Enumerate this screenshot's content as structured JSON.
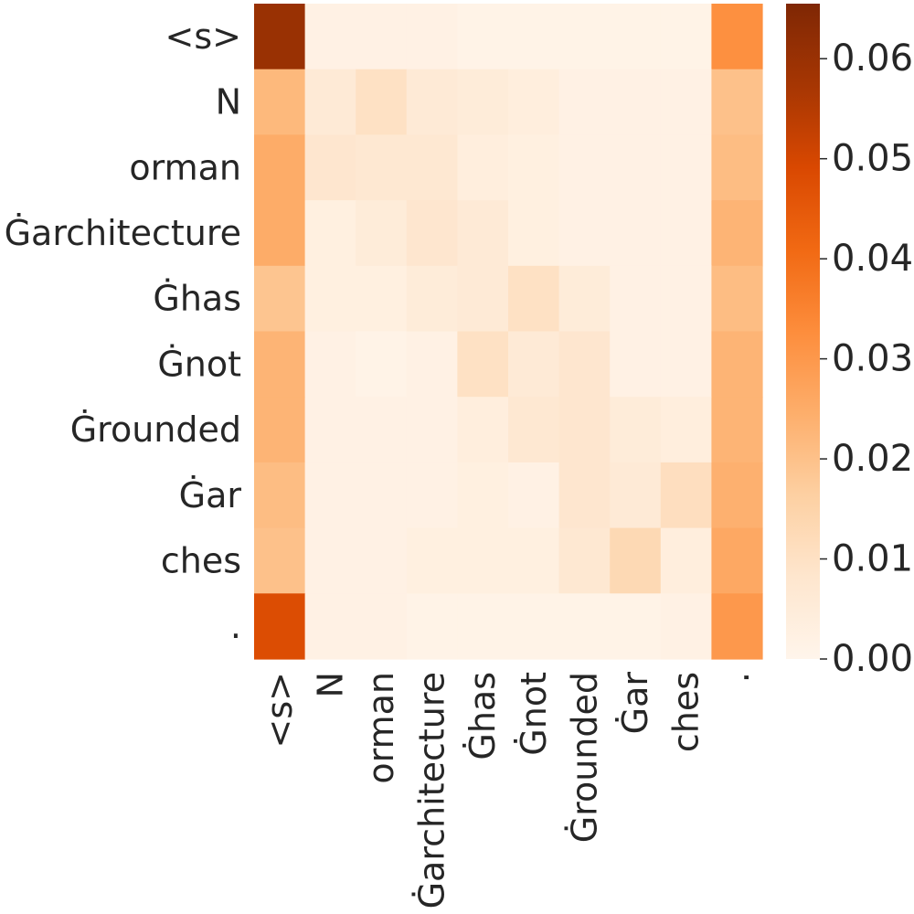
{
  "chart_data": {
    "type": "heatmap",
    "title": "",
    "xlabel": "",
    "ylabel": "",
    "x_labels": [
      "<s>",
      "N",
      "orman",
      "Ġarchitecture",
      "Ġhas",
      "Ġnot",
      "Ġrounded",
      "Ġar",
      "ches",
      "."
    ],
    "y_labels": [
      "<s>",
      "N",
      "orman",
      "Ġarchitecture",
      "Ġhas",
      "Ġnot",
      "Ġrounded",
      "Ġar",
      "ches",
      "."
    ],
    "values": [
      [
        0.06,
        0.002,
        0.002,
        0.002,
        0.001,
        0.001,
        0.001,
        0.001,
        0.001,
        0.032
      ],
      [
        0.022,
        0.006,
        0.01,
        0.006,
        0.005,
        0.004,
        0.002,
        0.002,
        0.002,
        0.02
      ],
      [
        0.025,
        0.008,
        0.007,
        0.007,
        0.004,
        0.003,
        0.002,
        0.002,
        0.002,
        0.021
      ],
      [
        0.025,
        0.003,
        0.005,
        0.008,
        0.006,
        0.003,
        0.002,
        0.002,
        0.002,
        0.023
      ],
      [
        0.019,
        0.003,
        0.003,
        0.005,
        0.006,
        0.01,
        0.005,
        0.002,
        0.002,
        0.021
      ],
      [
        0.023,
        0.002,
        0.001,
        0.002,
        0.01,
        0.006,
        0.008,
        0.002,
        0.002,
        0.023
      ],
      [
        0.023,
        0.002,
        0.002,
        0.002,
        0.004,
        0.007,
        0.008,
        0.005,
        0.004,
        0.023
      ],
      [
        0.021,
        0.002,
        0.002,
        0.002,
        0.003,
        0.002,
        0.008,
        0.006,
        0.011,
        0.024
      ],
      [
        0.02,
        0.002,
        0.002,
        0.003,
        0.003,
        0.003,
        0.007,
        0.013,
        0.004,
        0.026
      ],
      [
        0.048,
        0.002,
        0.002,
        0.001,
        0.001,
        0.001,
        0.001,
        0.001,
        0.002,
        0.03
      ]
    ],
    "colorbar": {
      "vmin": 0.0,
      "vmax": 0.0655,
      "ticks": [
        "0.00",
        "0.01",
        "0.02",
        "0.03",
        "0.04",
        "0.05",
        "0.06"
      ],
      "colormap": "Oranges",
      "colormap_stops": [
        "#fff5eb",
        "#fee6ce",
        "#fdd0a2",
        "#fdae6b",
        "#fd8d3c",
        "#f16913",
        "#d94801",
        "#a63603",
        "#7f2704"
      ]
    },
    "grid": false,
    "legend": "colorbar-right"
  }
}
